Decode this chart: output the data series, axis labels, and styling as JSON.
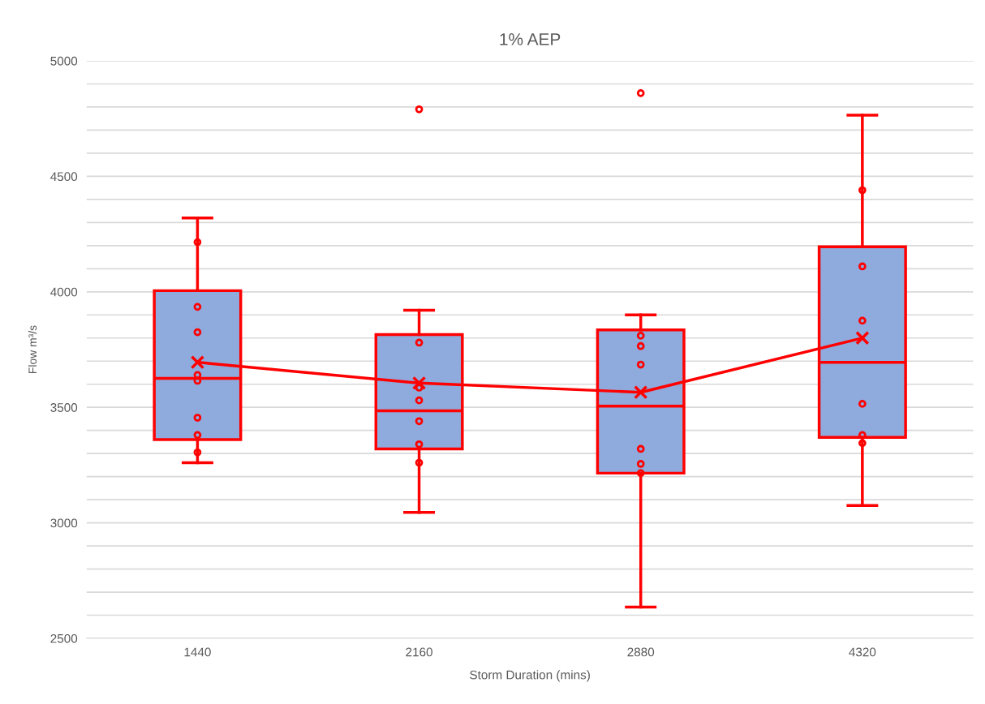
{
  "chart_data": {
    "type": "box",
    "title": "1% AEP",
    "xlabel": "Storm Duration (mins)",
    "ylabel": "Flow m³/s",
    "categories": [
      "1440",
      "2160",
      "2880",
      "4320"
    ],
    "series": [
      {
        "color": "#ff0000",
        "colors": [
          "#8faadc",
          "#8faadc",
          "#8faadc",
          "#8faadc"
        ],
        "boxes": [
          {
            "low": 3260,
            "q1": 3360,
            "median": 3625,
            "q3": 4005,
            "high": 4320,
            "outliers": [
              4215,
              3935,
              3825,
              3640,
              3615,
              3455,
              3380,
              3305
            ]
          },
          {
            "low": 3045,
            "q1": 3320,
            "median": 3485,
            "q3": 3815,
            "high": 3920,
            "outliers": [
              4790,
              3780,
              3585,
              3530,
              3440,
              3340,
              3260
            ]
          },
          {
            "low": 2635,
            "q1": 3215,
            "median": 3505,
            "q3": 3835,
            "high": 3900,
            "outliers": [
              4860,
              3810,
              3765,
              3685,
              3320,
              3255,
              3215
            ]
          },
          {
            "low": 3075,
            "q1": 3370,
            "median": 3695,
            "q3": 4195,
            "high": 4765,
            "outliers": [
              4440,
              4110,
              3875,
              3515,
              3380,
              3345
            ]
          }
        ]
      },
      {
        "type": "line",
        "color": "#ff0000",
        "marker": "cross",
        "line_style": "solid",
        "values": [
          3695,
          3605,
          3565,
          3800
        ]
      }
    ],
    "ylim": [
      2500,
      5000
    ],
    "yticks": [
      2500,
      {
        "value": 2600,
        "label": null
      },
      {
        "value": 2700,
        "label": null
      },
      {
        "value": 2800,
        "label": null
      },
      {
        "value": 2900,
        "label": null
      },
      3000,
      {
        "value": 3100,
        "label": null
      },
      {
        "value": 3200,
        "label": null
      },
      {
        "value": 3300,
        "label": null
      },
      {
        "value": 3400,
        "label": null
      },
      3500,
      {
        "value": 3600,
        "label": null
      },
      {
        "value": 3700,
        "label": null
      },
      {
        "value": 3800,
        "label": null
      },
      {
        "value": 3900,
        "label": null
      },
      4000,
      {
        "value": 4100,
        "label": null
      },
      {
        "value": 4200,
        "label": null
      },
      {
        "value": 4300,
        "label": null
      },
      {
        "value": 4400,
        "label": null
      },
      4500,
      {
        "value": 4600,
        "label": null
      },
      {
        "value": 4700,
        "label": null
      },
      {
        "value": 4800,
        "label": null
      },
      {
        "value": 4900,
        "label": null
      },
      5000
    ],
    "grid": "y"
  }
}
